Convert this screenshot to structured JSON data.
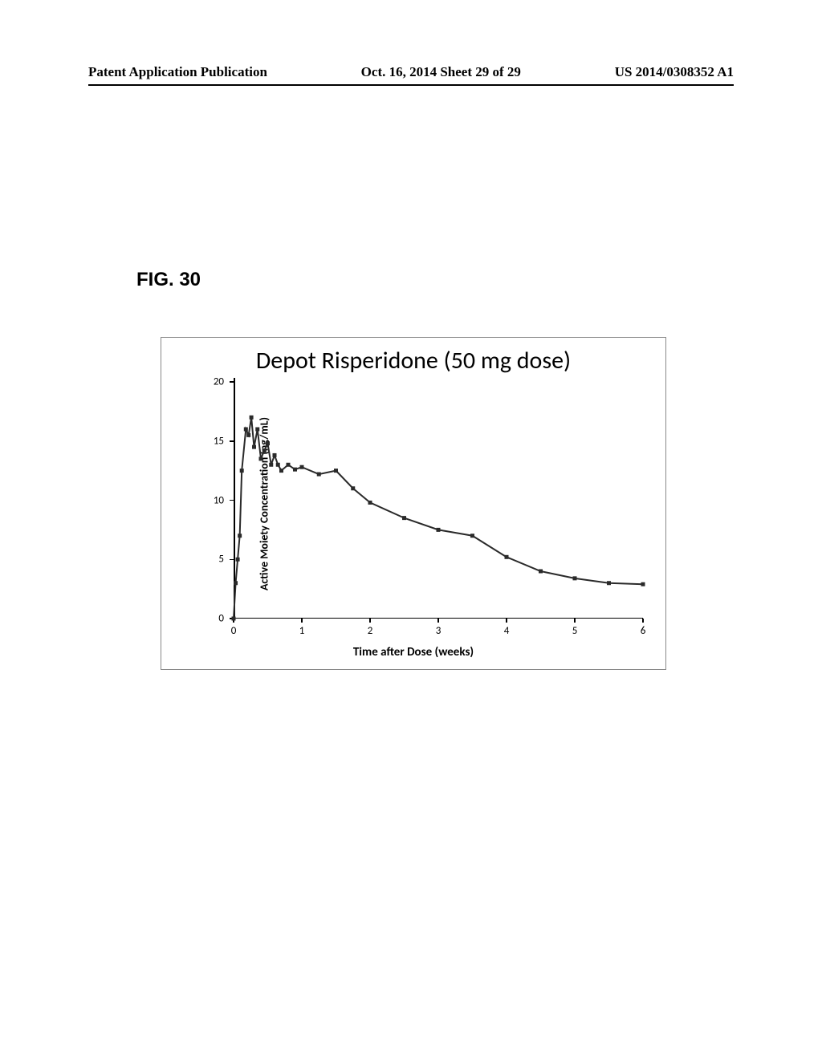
{
  "header": {
    "left": "Patent Application Publication",
    "center": "Oct. 16, 2014  Sheet 29 of 29",
    "right": "US 2014/0308352 A1"
  },
  "figure_label": "FIG. 30",
  "chart": {
    "type": "line",
    "title": "Depot Risperidone (50 mg dose)",
    "ylabel": "Active Moiety Concentration (ng/mL)",
    "xlabel": "Time after Dose (weeks)",
    "xlim": [
      0,
      6
    ],
    "ylim": [
      0,
      20
    ],
    "xticks": [
      0,
      1,
      2,
      3,
      4,
      5,
      6
    ],
    "yticks": [
      0,
      5,
      10,
      15,
      20
    ],
    "line_color": "#2a2a2a",
    "line_width": 2,
    "marker_color": "#2a2a2a",
    "marker_size": 5,
    "marker_style": "square",
    "background_color": "#ffffff",
    "title_fontsize": 30,
    "label_fontsize": 14,
    "tick_fontsize": 13,
    "data": [
      {
        "x": 0.0,
        "y": 0.0
      },
      {
        "x": 0.03,
        "y": 3.0
      },
      {
        "x": 0.06,
        "y": 5.0
      },
      {
        "x": 0.09,
        "y": 7.0
      },
      {
        "x": 0.12,
        "y": 12.5
      },
      {
        "x": 0.18,
        "y": 16.0
      },
      {
        "x": 0.22,
        "y": 15.5
      },
      {
        "x": 0.26,
        "y": 17.0
      },
      {
        "x": 0.3,
        "y": 14.5
      },
      {
        "x": 0.35,
        "y": 16.0
      },
      {
        "x": 0.4,
        "y": 13.5
      },
      {
        "x": 0.45,
        "y": 14.2
      },
      {
        "x": 0.5,
        "y": 14.8
      },
      {
        "x": 0.55,
        "y": 13.0
      },
      {
        "x": 0.6,
        "y": 13.8
      },
      {
        "x": 0.65,
        "y": 13.0
      },
      {
        "x": 0.7,
        "y": 12.5
      },
      {
        "x": 0.8,
        "y": 13.0
      },
      {
        "x": 0.9,
        "y": 12.6
      },
      {
        "x": 1.0,
        "y": 12.8
      },
      {
        "x": 1.25,
        "y": 12.2
      },
      {
        "x": 1.5,
        "y": 12.5
      },
      {
        "x": 1.75,
        "y": 11.0
      },
      {
        "x": 2.0,
        "y": 9.8
      },
      {
        "x": 2.5,
        "y": 8.5
      },
      {
        "x": 3.0,
        "y": 7.5
      },
      {
        "x": 3.5,
        "y": 7.0
      },
      {
        "x": 4.0,
        "y": 5.2
      },
      {
        "x": 4.5,
        "y": 4.0
      },
      {
        "x": 5.0,
        "y": 3.4
      },
      {
        "x": 5.5,
        "y": 3.0
      },
      {
        "x": 6.0,
        "y": 2.9
      }
    ]
  }
}
